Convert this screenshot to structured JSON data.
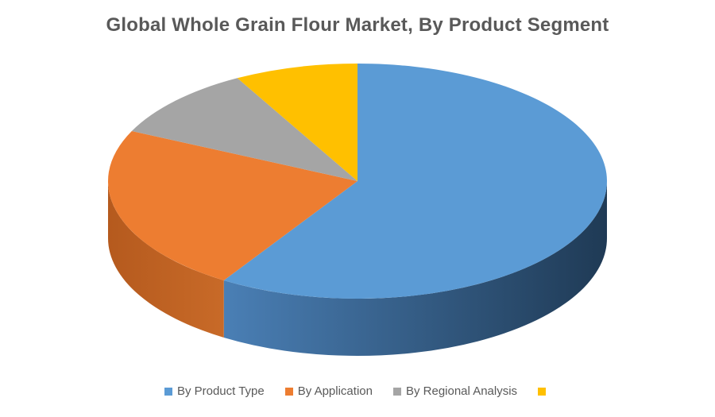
{
  "chart_data": {
    "type": "pie",
    "style": "3d",
    "title": "Global Whole Grain Flour Market, By Product Segment",
    "legend_position": "bottom",
    "categories": [
      "By Product Type",
      "By Application",
      "By Regional Analysis",
      ""
    ],
    "values": [
      59,
      23,
      10,
      8
    ],
    "colors": [
      "#5b9bd5",
      "#ed7d31",
      "#a5a5a5",
      "#ffc000"
    ]
  }
}
